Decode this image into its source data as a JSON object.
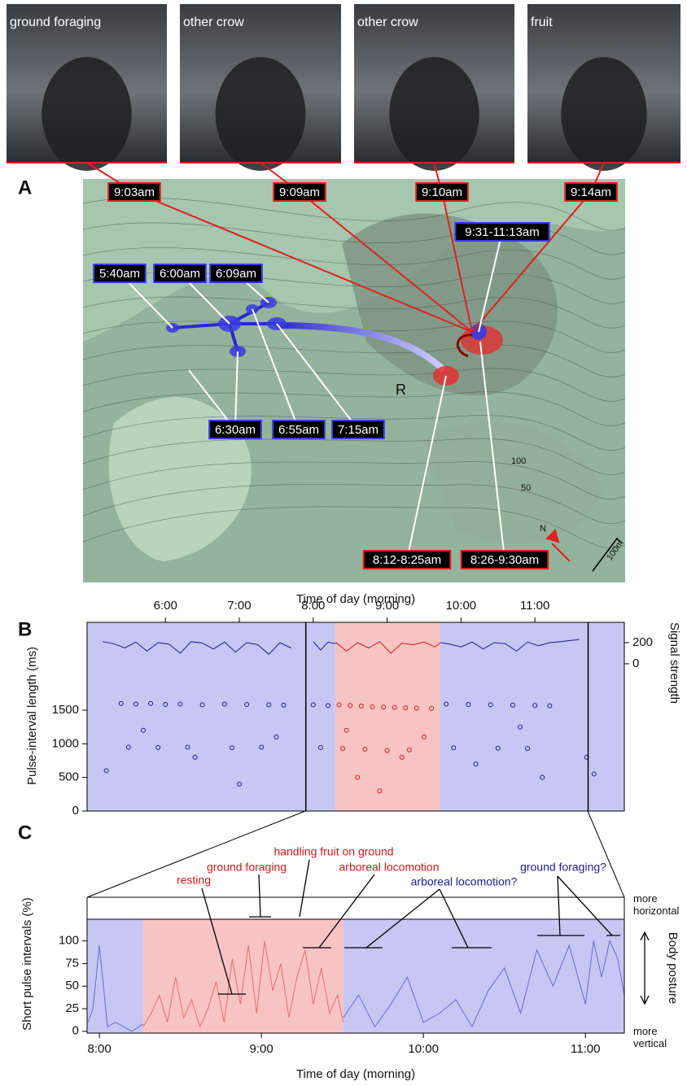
{
  "photos": [
    {
      "caption": "ground foraging"
    },
    {
      "caption": "other crow"
    },
    {
      "caption": "other crow"
    },
    {
      "caption": "fruit"
    }
  ],
  "map": {
    "panel_label": "A",
    "labels": [
      {
        "text": "9:03am",
        "style": "red"
      },
      {
        "text": "9:09am",
        "style": "red"
      },
      {
        "text": "9:10am",
        "style": "red"
      },
      {
        "text": "9:14am",
        "style": "red"
      },
      {
        "text": "9:31-11:13am",
        "style": "blue"
      },
      {
        "text": "5:40am",
        "style": "blue"
      },
      {
        "text": "6:00am",
        "style": "blue"
      },
      {
        "text": "6:09am",
        "style": "blue"
      },
      {
        "text": "6:30am",
        "style": "blue"
      },
      {
        "text": "6:55am",
        "style": "blue"
      },
      {
        "text": "7:15am",
        "style": "blue"
      },
      {
        "text": "8:12-8:25am",
        "style": "red"
      },
      {
        "text": "8:26-9:30am",
        "style": "red"
      }
    ],
    "roost": "R",
    "contour_labels": [
      "100",
      "50"
    ],
    "north": "N",
    "scale": "100m"
  },
  "chart_data": [
    {
      "type": "scatter",
      "panel_label": "B",
      "xlabel": "Time of day (morning)",
      "ylabel": "Pulse-interval length (ms)",
      "y2label": "Signal strength",
      "xlim": [
        4.94,
        12.21
      ],
      "xticks": [
        {
          "value": 6,
          "label": "6:00"
        },
        {
          "value": 7,
          "label": "7:00"
        },
        {
          "value": 8,
          "label": "8:00"
        },
        {
          "value": 9,
          "label": "9:00"
        },
        {
          "value": 10,
          "label": "10:00"
        },
        {
          "value": 11,
          "label": "11:00"
        }
      ],
      "ylim": [
        0,
        2806
      ],
      "yticks": [
        0,
        500,
        1000,
        1500
      ],
      "y2lim": [
        -1392,
        392
      ],
      "y2ticks": [
        0,
        200
      ],
      "regions": [
        {
          "start": 4.94,
          "end": 8.3,
          "color": "#c7c7f4"
        },
        {
          "start": 8.3,
          "end": 9.72,
          "color": "#f8c3c3"
        },
        {
          "start": 9.72,
          "end": 12.21,
          "color": "#c7c7f4"
        }
      ],
      "dividers": [
        7.9,
        11.72
      ],
      "series": [
        {
          "kind": "line",
          "axis": "y2",
          "color": "#1c1c8a",
          "x": [
            5.15,
            5.3,
            5.45,
            5.6,
            5.75,
            5.9,
            6.05,
            6.2,
            6.35,
            6.5,
            6.65,
            6.8,
            6.95,
            7.1,
            7.25,
            7.4,
            7.55,
            7.7,
            null,
            8.0,
            8.1,
            8.2,
            8.3,
            null,
            9.72,
            9.85,
            10.0,
            10.15,
            10.3,
            10.45,
            10.6,
            10.75,
            10.9,
            11.05,
            11.2,
            11.35,
            11.6
          ],
          "values": [
            210,
            190,
            150,
            205,
            120,
            200,
            185,
            100,
            210,
            195,
            140,
            205,
            110,
            200,
            180,
            90,
            200,
            150,
            null,
            210,
            130,
            205,
            190,
            null,
            200,
            185,
            160,
            205,
            140,
            200,
            190,
            120,
            205,
            170,
            200,
            210,
            230
          ]
        },
        {
          "kind": "line",
          "axis": "y2",
          "color": "#cc1a1a",
          "x": [
            8.3,
            8.45,
            8.6,
            8.75,
            8.9,
            9.05,
            9.2,
            9.35,
            9.5,
            9.65,
            9.72
          ],
          "values": [
            205,
            120,
            200,
            150,
            210,
            100,
            195,
            180,
            205,
            160,
            200
          ]
        },
        {
          "kind": "points",
          "color": "#1c1c8a",
          "x": [
            5.4,
            5.6,
            5.8,
            6.0,
            6.2,
            6.5,
            6.8,
            7.1,
            7.4,
            7.6,
            8.0,
            8.2,
            9.8,
            10.1,
            10.4,
            10.7,
            11.0,
            11.2,
            5.5,
            5.9,
            6.3,
            6.9,
            7.3,
            8.1,
            9.9,
            10.5,
            10.9,
            5.2,
            5.7,
            6.4,
            7.0,
            7.5,
            10.2,
            10.8,
            11.1,
            11.7,
            11.8
          ],
          "values": [
            1600,
            1590,
            1600,
            1585,
            1590,
            1580,
            1590,
            1585,
            1580,
            1575,
            1580,
            1570,
            1590,
            1585,
            1580,
            1575,
            1570,
            1565,
            950,
            945,
            950,
            940,
            950,
            945,
            940,
            935,
            930,
            600,
            1200,
            800,
            400,
            1100,
            700,
            1250,
            500,
            800,
            550
          ]
        },
        {
          "kind": "points",
          "color": "#cc1a1a",
          "x": [
            8.35,
            8.5,
            8.65,
            8.8,
            8.95,
            9.1,
            9.25,
            9.4,
            9.6,
            8.4,
            8.7,
            9.0,
            9.3,
            8.45,
            8.6,
            8.9,
            9.2,
            9.5
          ],
          "values": [
            1580,
            1570,
            1560,
            1550,
            1545,
            1540,
            1535,
            1530,
            1525,
            930,
            920,
            900,
            910,
            1200,
            500,
            300,
            800,
            1100
          ]
        }
      ]
    },
    {
      "type": "line",
      "panel_label": "C",
      "xlabel": "Time of day (morning)",
      "ylabel": "Short pulse intervals (%)",
      "y2label": "Body posture",
      "top_note": "more horizontal",
      "bottom_note": "more vertical",
      "xlim": [
        7.924,
        11.24
      ],
      "xticks": [
        {
          "value": 8,
          "label": "8:00"
        },
        {
          "value": 9,
          "label": "9:00"
        },
        {
          "value": 10,
          "label": "10:00"
        },
        {
          "value": 11,
          "label": "11:00"
        }
      ],
      "ylim": [
        -2,
        124
      ],
      "yticks": [
        0,
        25,
        50,
        75,
        100
      ],
      "regions": [
        {
          "start": 7.924,
          "end": 8.27,
          "color": "#c7c7f4"
        },
        {
          "start": 8.27,
          "end": 9.505,
          "color": "#f8c3c3"
        },
        {
          "start": 9.505,
          "end": 11.24,
          "color": "#c7c7f4"
        }
      ],
      "annotations": [
        {
          "text": "handling fruit on ground",
          "color": "#cc1a1a"
        },
        {
          "text": "ground foraging",
          "color": "#cc1a1a"
        },
        {
          "text": "arboreal locomotion",
          "color": "#cc1a1a"
        },
        {
          "text": "resting",
          "color": "#cc1a1a"
        },
        {
          "text": "arboreal locomotion?",
          "color": "#1c1c8a"
        },
        {
          "text": "ground foraging?",
          "color": "#1c1c8a"
        }
      ],
      "series": [
        {
          "kind": "line",
          "color": "#e07070",
          "x": [
            8.27,
            8.32,
            8.37,
            8.42,
            8.47,
            8.52,
            8.57,
            8.62,
            8.67,
            8.72,
            8.77,
            8.82,
            8.87,
            8.92,
            8.97,
            9.02,
            9.07,
            9.12,
            9.17,
            9.22,
            9.27,
            9.32,
            9.37,
            9.42,
            9.47,
            9.505
          ],
          "values": [
            5,
            20,
            40,
            10,
            60,
            15,
            35,
            5,
            25,
            55,
            10,
            80,
            30,
            95,
            20,
            100,
            45,
            75,
            15,
            60,
            90,
            30,
            70,
            20,
            40,
            10
          ]
        },
        {
          "kind": "line",
          "color": "#6a6ad0",
          "x": [
            7.93,
            7.96,
            8.0,
            8.05,
            8.1,
            8.2,
            8.27,
            null,
            9.505,
            9.6,
            9.7,
            9.8,
            9.9,
            10.0,
            10.1,
            10.2,
            10.3,
            10.4,
            10.5,
            10.6,
            10.7,
            10.8,
            10.9,
            11.0,
            11.05,
            11.1,
            11.15,
            11.2,
            11.24
          ],
          "values": [
            10,
            25,
            95,
            5,
            10,
            0,
            8,
            null,
            15,
            40,
            5,
            30,
            60,
            10,
            20,
            35,
            5,
            45,
            70,
            20,
            90,
            50,
            95,
            30,
            100,
            60,
            100,
            80,
            40
          ]
        }
      ]
    }
  ]
}
